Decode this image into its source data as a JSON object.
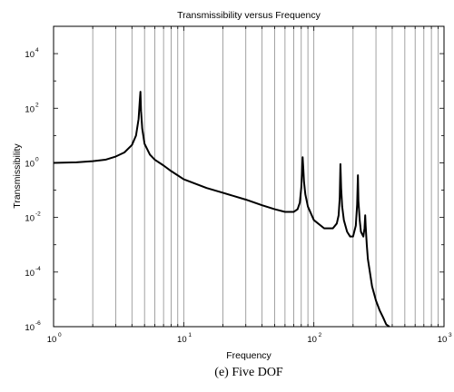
{
  "figure": {
    "caption": "(e) Five DOF"
  },
  "chart_data": {
    "type": "line",
    "title": "Transmissibility versus Frequency",
    "xlabel": "Frequency",
    "ylabel": "Transmissibility",
    "xscale": "log",
    "yscale": "log",
    "xlim": [
      1,
      1000
    ],
    "ylim": [
      1e-06,
      100000
    ],
    "grid": "vertical-minor-and-major",
    "legend": "none",
    "line_color": "#000000",
    "xticks": [
      {
        "base": "10",
        "exp": "0",
        "value": 1
      },
      {
        "base": "10",
        "exp": "1",
        "value": 10
      },
      {
        "base": "10",
        "exp": "2",
        "value": 100
      },
      {
        "base": "10",
        "exp": "3",
        "value": 1000
      }
    ],
    "yticks": [
      {
        "base": "10",
        "exp": "-6",
        "value": 1e-06
      },
      {
        "base": "10",
        "exp": "-4",
        "value": 0.0001
      },
      {
        "base": "10",
        "exp": "-2",
        "value": 0.01
      },
      {
        "base": "10",
        "exp": "0",
        "value": 1
      },
      {
        "base": "10",
        "exp": "2",
        "value": 100
      },
      {
        "base": "10",
        "exp": "4",
        "value": 10000
      }
    ],
    "series": [
      {
        "x": [
          1,
          1.5,
          2,
          2.5,
          3,
          3.5,
          4,
          4.3,
          4.5,
          4.6,
          4.65,
          4.7,
          4.8,
          5,
          5.5,
          6,
          7,
          8,
          10,
          15,
          20,
          30,
          40,
          50,
          60,
          70,
          75,
          78,
          80,
          82,
          83,
          84,
          86,
          90,
          100,
          120,
          140,
          150,
          155,
          158,
          160,
          162,
          165,
          170,
          180,
          190,
          200,
          210,
          215,
          218,
          220,
          225,
          230,
          240,
          245,
          248,
          250,
          255,
          260,
          280,
          300,
          320,
          340,
          360,
          380
        ],
        "y": [
          1,
          1.05,
          1.15,
          1.3,
          1.7,
          2.4,
          4.5,
          10,
          40,
          200,
          400,
          80,
          18,
          5,
          2,
          1.3,
          0.8,
          0.5,
          0.25,
          0.12,
          0.08,
          0.045,
          0.028,
          0.02,
          0.016,
          0.016,
          0.02,
          0.035,
          0.12,
          1.6,
          0.6,
          0.2,
          0.07,
          0.025,
          0.008,
          0.004,
          0.004,
          0.006,
          0.012,
          0.05,
          0.9,
          0.12,
          0.025,
          0.008,
          0.003,
          0.002,
          0.002,
          0.005,
          0.03,
          0.35,
          0.04,
          0.008,
          0.003,
          0.002,
          0.004,
          0.012,
          0.005,
          0.001,
          0.0003,
          3e-05,
          9e-06,
          4e-06,
          2.2e-06,
          1.2e-06,
          7e-07
        ]
      }
    ]
  }
}
